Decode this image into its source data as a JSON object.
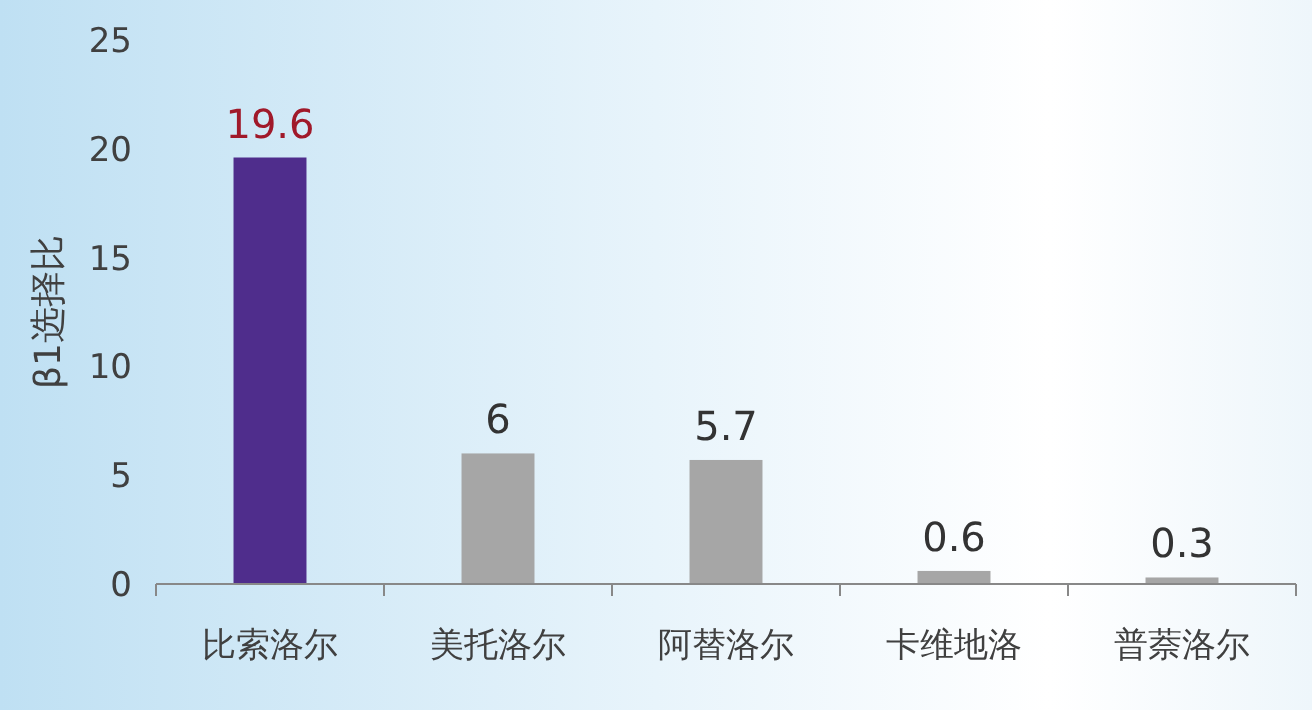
{
  "chart_data": {
    "type": "bar",
    "ylabel": "β1选择比",
    "categories": [
      "比索洛尔",
      "美托洛尔",
      "阿替洛尔",
      "卡维地洛",
      "普萘洛尔"
    ],
    "values": [
      19.6,
      6,
      5.7,
      0.6,
      0.3
    ],
    "colors": [
      "#4f2d8c",
      "#a6a6a6",
      "#a6a6a6",
      "#a6a6a6",
      "#a6a6a6"
    ],
    "ylim": [
      0,
      25
    ],
    "yticks": [
      0,
      5,
      10,
      15,
      20,
      25
    ],
    "data_labels": true,
    "grid": false
  }
}
